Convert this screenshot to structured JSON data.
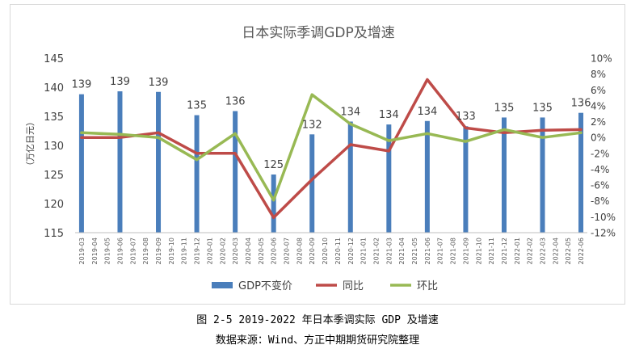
{
  "chart_data": {
    "type": "bar",
    "title": "日本实际季调GDP及增速",
    "ylabel": "（万亿日元）",
    "xlabel": "",
    "categories": [
      "2019-03",
      "2019-04",
      "2019-05",
      "2019-06",
      "2019-07",
      "2019-08",
      "2019-09",
      "2019-10",
      "2019-11",
      "2019-12",
      "2020-01",
      "2020-02",
      "2020-03",
      "2020-04",
      "2020-05",
      "2020-06",
      "2020-07",
      "2020-08",
      "2020-09",
      "2020-10",
      "2020-11",
      "2020-12",
      "2021-01",
      "2021-02",
      "2021-03",
      "2021-04",
      "2021-05",
      "2021-06",
      "2021-07",
      "2021-08",
      "2021-09",
      "2021-10",
      "2021-11",
      "2021-12",
      "2022-01",
      "2022-02",
      "2022-03",
      "2022-04",
      "2022-05",
      "2022-06"
    ],
    "ylim": [
      115,
      145
    ],
    "yticks": [
      115,
      120,
      125,
      130,
      135,
      140,
      145
    ],
    "y2lim": [
      -12,
      10
    ],
    "y2ticks": [
      "10%",
      "8%",
      "6%",
      "4%",
      "2%",
      "0%",
      "-2%",
      "-4%",
      "-6%",
      "-8%",
      "-10%",
      "-12%"
    ],
    "grid": false,
    "legend_position": "bottom",
    "series": [
      {
        "name": "GDP不变价",
        "type": "bar",
        "axis": "left",
        "color": "#4a7ebb",
        "x": [
          "2019-03",
          "2019-06",
          "2019-09",
          "2019-12",
          "2020-03",
          "2020-06",
          "2020-09",
          "2020-12",
          "2021-03",
          "2021-06",
          "2021-09",
          "2021-12",
          "2022-03",
          "2022-06"
        ],
        "values": [
          138.8,
          139.3,
          139.2,
          135.2,
          135.9,
          125.0,
          131.9,
          134.1,
          133.6,
          134.2,
          133.3,
          134.8,
          134.8,
          135.6
        ],
        "labels": [
          "139",
          "139",
          "139",
          "135",
          "136",
          "125",
          "132",
          "134",
          "134",
          "134",
          "133",
          "135",
          "135",
          "136"
        ]
      },
      {
        "name": "同比",
        "type": "line",
        "axis": "right",
        "color": "#be4b48",
        "x": [
          "2019-03",
          "2019-06",
          "2019-09",
          "2019-12",
          "2020-03",
          "2020-06",
          "2020-09",
          "2020-12",
          "2021-03",
          "2021-06",
          "2021-09",
          "2021-12",
          "2022-03",
          "2022-06"
        ],
        "values": [
          0.0,
          0.0,
          0.6,
          -2.0,
          -2.0,
          -10.1,
          -5.3,
          -0.9,
          -1.7,
          7.3,
          1.2,
          0.6,
          0.9,
          1.0
        ]
      },
      {
        "name": "环比",
        "type": "line",
        "axis": "right",
        "color": "#98b954",
        "x": [
          "2019-03",
          "2019-06",
          "2019-09",
          "2019-12",
          "2020-03",
          "2020-06",
          "2020-09",
          "2020-12",
          "2021-03",
          "2021-06",
          "2021-09",
          "2021-12",
          "2022-03",
          "2022-06"
        ],
        "values": [
          0.6,
          0.4,
          0.0,
          -2.8,
          0.5,
          -7.9,
          5.4,
          1.7,
          -0.4,
          0.5,
          -0.5,
          1.0,
          0.0,
          0.6
        ]
      }
    ]
  },
  "caption": "图 2-5 2019-2022 年日本季调实际 GDP 及增速",
  "source": "数据来源：Wind、方正中期期货研究院整理"
}
